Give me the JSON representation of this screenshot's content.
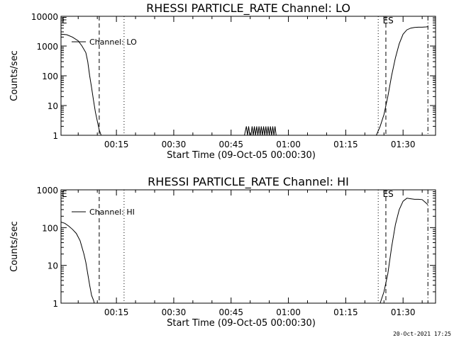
{
  "x_tick_labels": [
    "00:15",
    "00:30",
    "00:45",
    "01:00",
    "01:15",
    "01:30"
  ],
  "timestamp": "20-Oct-2021 17:25",
  "chart_data": [
    {
      "type": "line",
      "title": "RHESSI PARTICLE_RATE Channel: LO",
      "xlabel": "Start Time (09-Oct-05 00:00:30)",
      "ylabel": "Counts/sec",
      "yscale": "log",
      "ylim": [
        1,
        10000
      ],
      "y_tick_labels": [
        "10000",
        "1000",
        "100",
        "10",
        "1"
      ],
      "y_ticks": [
        10000,
        1000,
        100,
        10,
        1
      ],
      "x_ticks_minutes": [
        15,
        30,
        45,
        60,
        75,
        90
      ],
      "xlim_minutes": [
        0.5,
        98.5
      ],
      "legend": {
        "text": "Channel: LO",
        "position": "top-left"
      },
      "marker_labels": [
        {
          "text": "E",
          "minute": 0.5
        },
        {
          "text": "ES",
          "minute": 84.5
        }
      ],
      "vertical_lines": [
        {
          "minute": 10.5,
          "style": "dashed"
        },
        {
          "minute": 17.0,
          "style": "dotted"
        },
        {
          "minute": 83.5,
          "style": "dotted"
        },
        {
          "minute": 85.5,
          "style": "dashed"
        },
        {
          "minute": 96.5,
          "style": "dashdot"
        }
      ],
      "series": [
        {
          "x": [
            0.5,
            2.0,
            3.5,
            5.0,
            6.0,
            7.0,
            7.5,
            8.0,
            8.5,
            9.0,
            9.5,
            10.0,
            10.5,
            11.0
          ],
          "y": [
            2500,
            2400,
            2000,
            1500,
            1000,
            600,
            300,
            100,
            40,
            15,
            6,
            3,
            1.5,
            1
          ]
        },
        {
          "x": [
            48.5,
            49.0,
            49.3,
            49.6,
            49.9,
            50.2,
            50.5,
            50.8,
            51.1,
            51.4,
            51.7,
            52.0,
            52.3,
            52.6,
            52.9,
            53.2,
            53.5,
            53.8,
            54.1,
            54.4,
            54.7,
            55.0,
            55.3,
            55.6,
            55.9,
            56.2,
            56.5,
            56.8
          ],
          "y": [
            1,
            2,
            1,
            2,
            1,
            1,
            2,
            1,
            2,
            1,
            2,
            1,
            2,
            1,
            2,
            1,
            2,
            1,
            2,
            1,
            2,
            1,
            2,
            1,
            2,
            1,
            2,
            1
          ]
        },
        {
          "x": [
            83.0,
            84.0,
            85.0,
            86.0,
            87.0,
            88.0,
            89.0,
            90.0,
            91.0,
            92.0,
            93.0,
            94.0,
            95.0,
            96.0,
            96.5
          ],
          "y": [
            1,
            2,
            5,
            20,
            100,
            400,
            1200,
            2500,
            3500,
            4000,
            4200,
            4300,
            4300,
            4400,
            4500
          ]
        }
      ]
    },
    {
      "type": "line",
      "title": "RHESSI PARTICLE_RATE Channel: HI",
      "xlabel": "Start Time (09-Oct-05 00:00:30)",
      "ylabel": "Counts/sec",
      "yscale": "log",
      "ylim": [
        1,
        1000
      ],
      "y_tick_labels": [
        "1000",
        "100",
        "10",
        "1"
      ],
      "y_ticks": [
        1000,
        100,
        10,
        1
      ],
      "x_ticks_minutes": [
        15,
        30,
        45,
        60,
        75,
        90
      ],
      "xlim_minutes": [
        0.5,
        98.5
      ],
      "legend": {
        "text": "Channel: HI",
        "position": "top-left"
      },
      "marker_labels": [
        {
          "text": "E",
          "minute": 0.5
        },
        {
          "text": "ES",
          "minute": 84.5
        }
      ],
      "vertical_lines": [
        {
          "minute": 10.5,
          "style": "dashed"
        },
        {
          "minute": 17.0,
          "style": "dotted"
        },
        {
          "minute": 83.5,
          "style": "dotted"
        },
        {
          "minute": 85.5,
          "style": "dashed"
        },
        {
          "minute": 96.5,
          "style": "dashdot"
        }
      ],
      "series": [
        {
          "x": [
            0.5,
            1.5,
            2.5,
            3.5,
            4.5,
            5.5,
            6.5,
            7.0,
            7.5,
            8.0,
            8.5,
            9.0,
            9.2
          ],
          "y": [
            140,
            130,
            110,
            90,
            70,
            45,
            20,
            12,
            6,
            3,
            1.6,
            1.2,
            1
          ]
        },
        {
          "x": [
            84.0,
            85.0,
            86.0,
            87.0,
            88.0,
            89.0,
            90.0,
            91.0,
            92.0,
            93.0,
            94.0,
            95.0,
            96.0,
            96.5
          ],
          "y": [
            1,
            2,
            6,
            30,
            120,
            300,
            500,
            600,
            580,
            560,
            560,
            550,
            450,
            400
          ]
        }
      ]
    }
  ]
}
